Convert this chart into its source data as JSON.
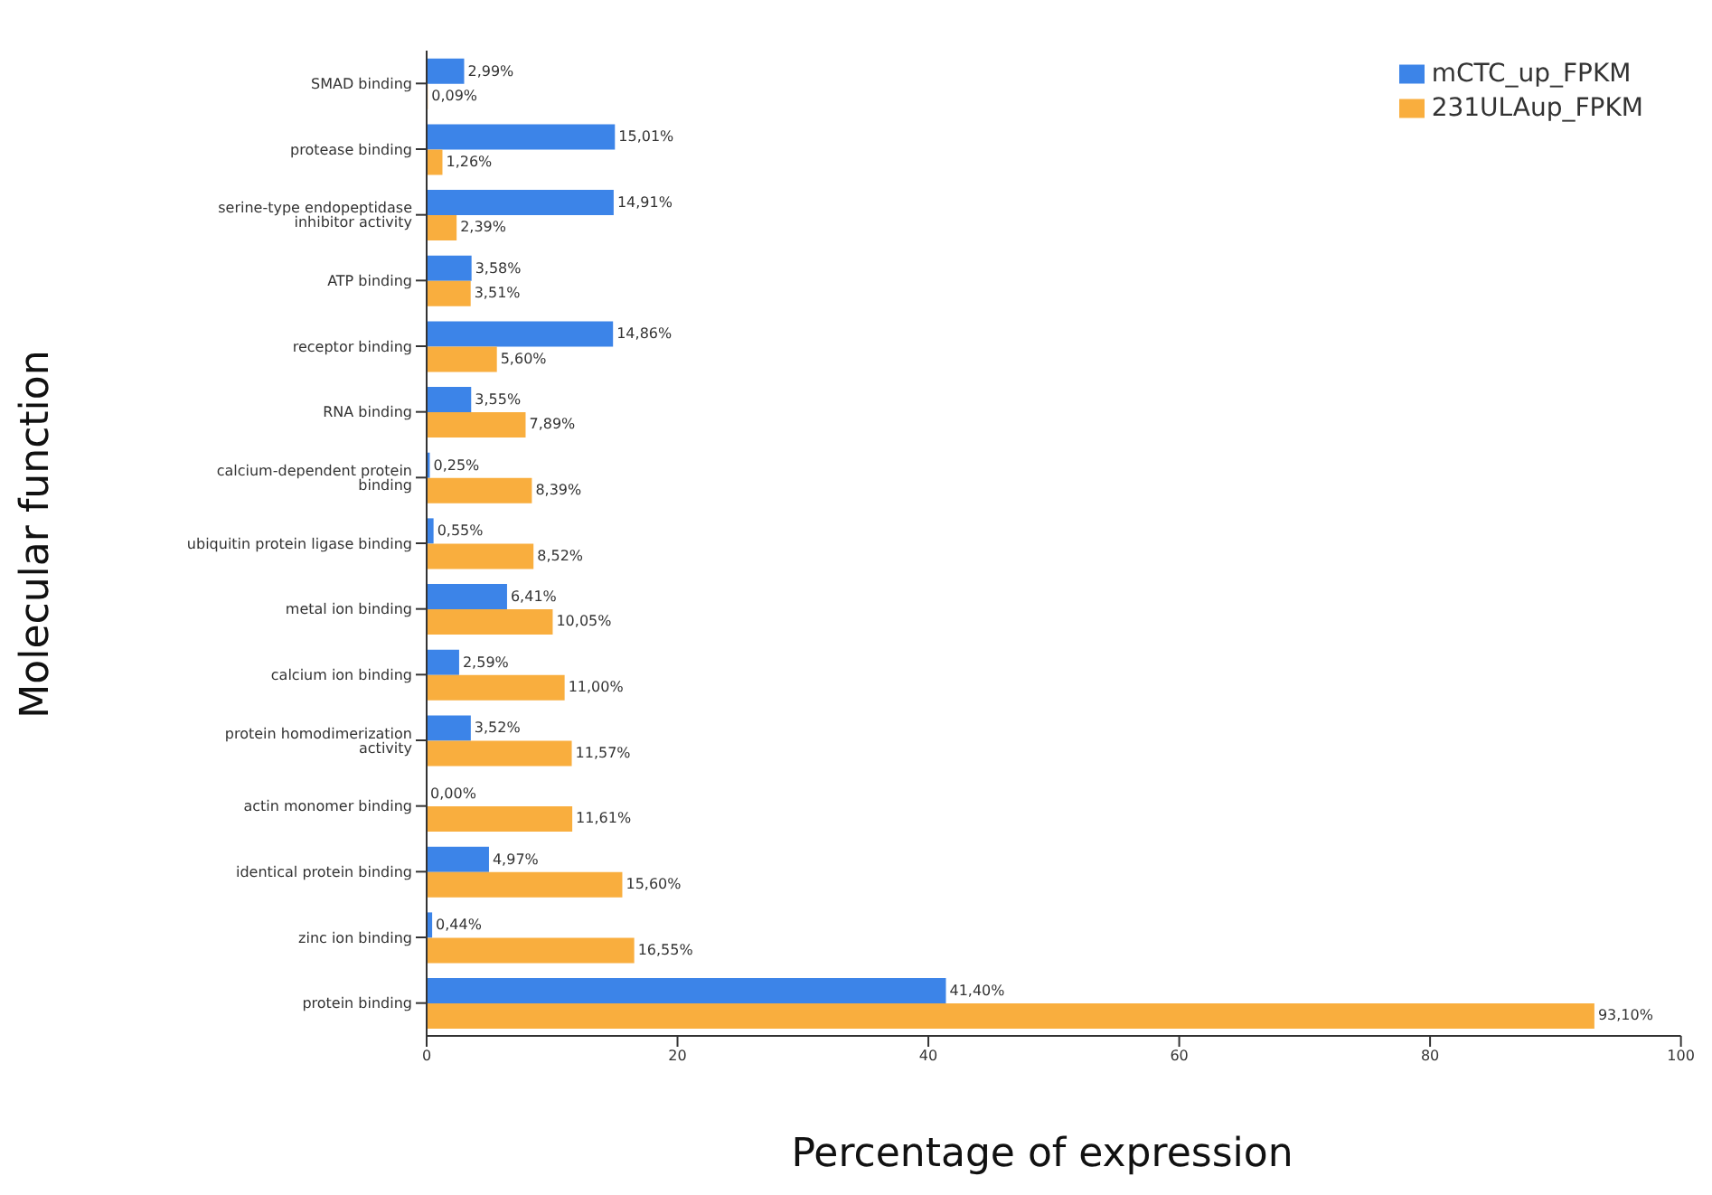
{
  "chart_data": {
    "type": "bar",
    "orientation": "horizontal",
    "xlabel": "Percentage of expression",
    "ylabel": "Molecular function",
    "categories": [
      "SMAD binding",
      "protease binding",
      "serine-type endopeptidase inhibitor activity",
      "ATP binding",
      "receptor binding",
      "RNA binding",
      "calcium-dependent protein binding",
      "ubiquitin protein ligase binding",
      "metal ion binding",
      "calcium ion binding",
      "protein homodimerization activity",
      "actin monomer binding",
      "identical protein binding",
      "zinc ion binding",
      "protein binding"
    ],
    "series": [
      {
        "name": "mCTC_up_FPKM",
        "color": "#3c84e8",
        "values": [
          2.99,
          15.01,
          14.91,
          3.58,
          14.86,
          3.55,
          0.25,
          0.55,
          6.41,
          2.59,
          3.52,
          0.0,
          4.97,
          0.44,
          41.4
        ],
        "value_labels": [
          "2,99%",
          "15,01%",
          "14,91%",
          "3,58%",
          "14,86%",
          "3,55%",
          "0,25%",
          "0,55%",
          "6,41%",
          "2,59%",
          "3,52%",
          "0,00%",
          "4,97%",
          "0,44%",
          "41,40%"
        ]
      },
      {
        "name": "231ULAup_FPKM",
        "color": "#f9ae3e",
        "values": [
          0.09,
          1.26,
          2.39,
          3.51,
          5.6,
          7.89,
          8.39,
          8.52,
          10.05,
          11.0,
          11.57,
          11.61,
          15.6,
          16.55,
          93.1
        ],
        "value_labels": [
          "0,09%",
          "1,26%",
          "2,39%",
          "3,51%",
          "5,60%",
          "7,89%",
          "8,39%",
          "8,52%",
          "10,05%",
          "11,00%",
          "11,57%",
          "11,61%",
          "15,60%",
          "16,55%",
          "93,10%"
        ]
      }
    ],
    "xlim": [
      0,
      100
    ],
    "xticks": [
      0,
      20,
      40,
      60,
      80,
      100
    ],
    "grid": false,
    "legend": "top right"
  }
}
